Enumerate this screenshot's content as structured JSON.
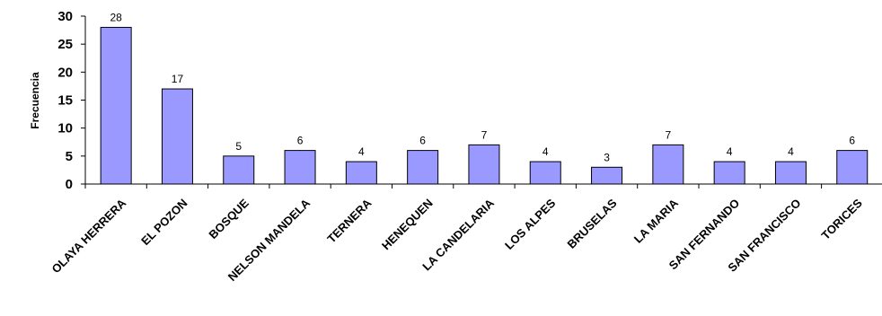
{
  "chart_data": {
    "type": "bar",
    "title": "",
    "xlabel": "",
    "ylabel": "Frecuencia",
    "ylim": [
      0,
      30
    ],
    "yticks": [
      0,
      5,
      10,
      15,
      20,
      25,
      30
    ],
    "categories": [
      "OLAYA HERRERA",
      "EL POZON",
      "BOSQUE",
      "NELSON MANDELA",
      "TERNERA",
      "HENEQUEN",
      "LA CANDELARIA",
      "LOS ALPES",
      "BRUSELAS",
      "LA MARIA",
      "SAN FERNANDO",
      "SAN FRANCISCO",
      "TORICES"
    ],
    "values": [
      28,
      17,
      5,
      6,
      4,
      6,
      7,
      4,
      3,
      7,
      4,
      4,
      6
    ],
    "data_labels": true,
    "grid": false,
    "legend": "none",
    "bar_color": "#9999ff",
    "bar_stroke": "#000000"
  }
}
